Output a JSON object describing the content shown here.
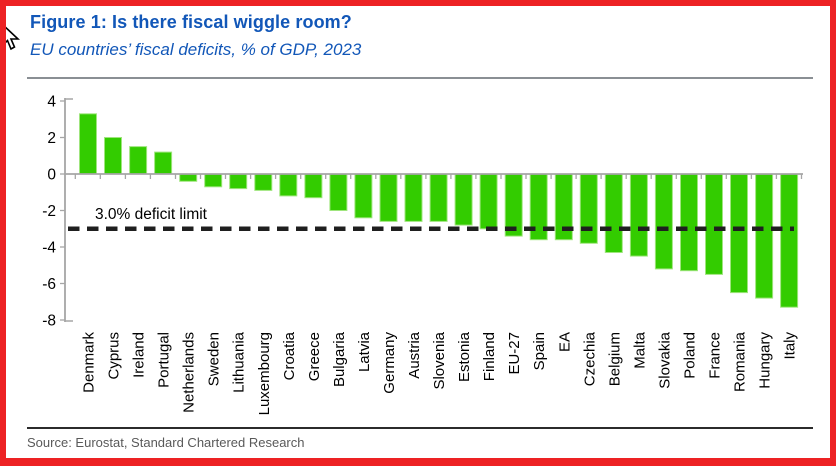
{
  "header": {
    "title": "Figure 1: Is there fiscal wiggle room?",
    "subtitle": "EU countries’ fiscal deficits, % of GDP, 2023",
    "title_color": "#1257b8"
  },
  "footer": {
    "source": "Source: Eurostat, Standard Chartered Research"
  },
  "icons": {
    "cursor": "arrow-cursor"
  },
  "chart_data": {
    "type": "bar",
    "title": "Figure 1: Is there fiscal wiggle room?",
    "subtitle": "EU countries’ fiscal deficits, % of GDP, 2023",
    "xlabel": "",
    "ylabel": "",
    "ylim": [
      -8,
      4
    ],
    "yticks": [
      4,
      2,
      0,
      -2,
      -4,
      -6,
      -8
    ],
    "grid": false,
    "legend": "none",
    "bar_color": "#33cc00",
    "bar_edge_color": "#9fe57d",
    "axis_color": "#a6a6a6",
    "categories": [
      "Denmark",
      "Cyprus",
      "Ireland",
      "Portugal",
      "Netherlands",
      "Sweden",
      "Lithuania",
      "Luxembourg",
      "Croatia",
      "Greece",
      "Bulgaria",
      "Latvia",
      "Germany",
      "Austria",
      "Slovenia",
      "Estonia",
      "Finland",
      "EU-27",
      "Spain",
      "EA",
      "Czechia",
      "Belgium",
      "Malta",
      "Slovakia",
      "Poland",
      "France",
      "Romania",
      "Hungary",
      "Italy"
    ],
    "values": [
      3.3,
      2.0,
      1.5,
      1.2,
      -0.4,
      -0.7,
      -0.8,
      -0.9,
      -1.2,
      -1.3,
      -2.0,
      -2.4,
      -2.6,
      -2.6,
      -2.6,
      -2.8,
      -3.0,
      -3.4,
      -3.6,
      -3.6,
      -3.8,
      -4.3,
      -4.5,
      -5.2,
      -5.3,
      -5.5,
      -6.5,
      -6.8,
      -7.3
    ],
    "annotation": {
      "label": "3.0% deficit limit",
      "value": -3,
      "line_style": "dashed",
      "line_color": "#1f1f1f"
    }
  }
}
